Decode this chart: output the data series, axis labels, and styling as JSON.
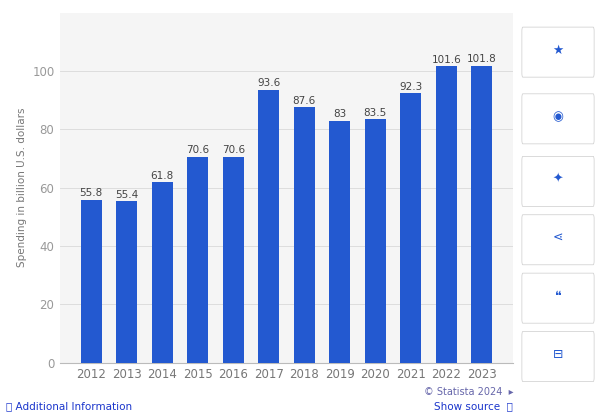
{
  "years": [
    2012,
    2013,
    2014,
    2015,
    2016,
    2017,
    2018,
    2019,
    2020,
    2021,
    2022,
    2023
  ],
  "values": [
    55.8,
    55.4,
    61.8,
    70.6,
    70.6,
    93.6,
    87.6,
    83.0,
    83.5,
    92.3,
    101.6,
    101.8
  ],
  "bar_color": "#2359d0",
  "background_color": "#ffffff",
  "plot_bg_color": "#f5f5f5",
  "sidebar_color": "#f0f0f0",
  "ylabel": "Spending in billion U.S. dollars",
  "ylim": [
    0,
    120
  ],
  "yticks": [
    0,
    20,
    40,
    60,
    80,
    100
  ],
  "grid_color": "#dddddd",
  "bar_width": 0.6,
  "label_fontsize": 7.5,
  "axis_fontsize": 8.5,
  "ylabel_fontsize": 7.5,
  "tick_color": "#777777",
  "ytick_color": "#999999",
  "footer_color_blue": "#1a35cc",
  "footer_color_gray": "#6666aa"
}
